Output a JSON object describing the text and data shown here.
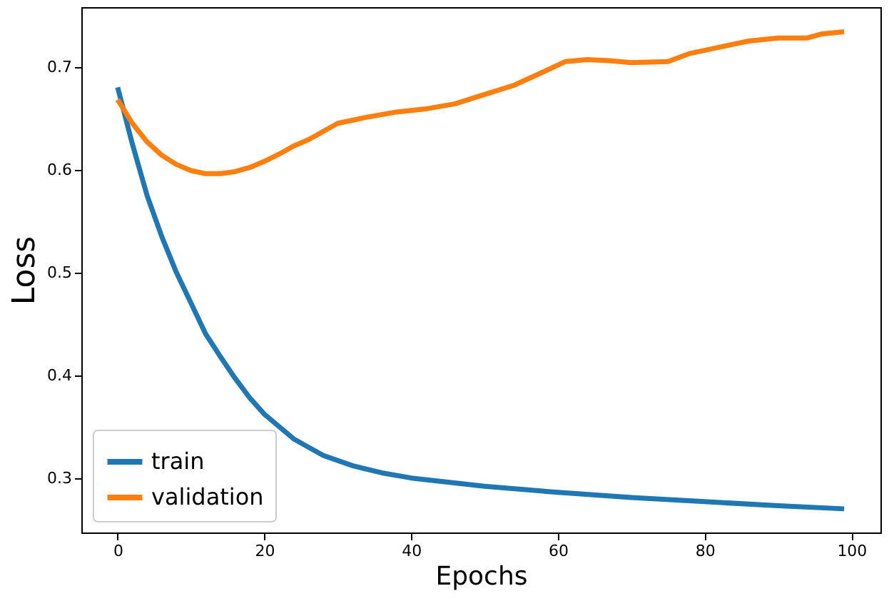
{
  "chart_data": {
    "type": "line",
    "xlabel": "Epochs",
    "ylabel": "Loss",
    "xlim": [
      -4.95,
      103.95
    ],
    "xticks": [
      0,
      20,
      40,
      60,
      80,
      100
    ],
    "ylim": [
      0.247,
      0.758
    ],
    "yticks": [
      0.3,
      0.4,
      0.5,
      0.6,
      0.7
    ],
    "grid": false,
    "legend": "bottom left",
    "line_style": "solid",
    "marker": "none",
    "series": [
      {
        "name": "train",
        "color": "#1f77b4",
        "x": [
          0,
          2,
          4,
          6,
          8,
          10,
          12,
          14,
          16,
          18,
          20,
          24,
          28,
          32,
          36,
          40,
          50,
          60,
          70,
          80,
          90,
          99
        ],
        "values": [
          0.68,
          0.625,
          0.575,
          0.535,
          0.5,
          0.47,
          0.44,
          0.418,
          0.397,
          0.378,
          0.362,
          0.338,
          0.322,
          0.312,
          0.305,
          0.3,
          0.292,
          0.286,
          0.281,
          0.277,
          0.273,
          0.27
        ]
      },
      {
        "name": "validation",
        "color": "#ff7f0e",
        "x": [
          0,
          2,
          4,
          6,
          8,
          10,
          12,
          14,
          16,
          18,
          20,
          22,
          24,
          26,
          28,
          30,
          34,
          38,
          42,
          46,
          50,
          54,
          58,
          61,
          64,
          67,
          70,
          75,
          78,
          82,
          86,
          90,
          94,
          96,
          99
        ],
        "values": [
          0.668,
          0.645,
          0.627,
          0.614,
          0.605,
          0.599,
          0.596,
          0.596,
          0.598,
          0.602,
          0.608,
          0.615,
          0.623,
          0.629,
          0.637,
          0.645,
          0.651,
          0.656,
          0.659,
          0.664,
          0.673,
          0.682,
          0.695,
          0.705,
          0.707,
          0.706,
          0.704,
          0.705,
          0.713,
          0.719,
          0.725,
          0.728,
          0.728,
          0.732,
          0.734
        ]
      }
    ]
  }
}
